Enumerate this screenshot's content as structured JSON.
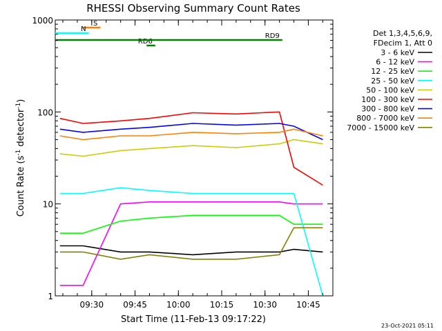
{
  "chart_data": {
    "type": "line",
    "title": "RHESSI Observing Summary Count Rates",
    "xlabel": "Start Time (11-Feb-13 09:17:22)",
    "ylabel": "Count Rate (s",
    "ylabel_sup": "-1",
    "ylabel_mid": " detector",
    "ylabel_end": ")",
    "yscale": "log",
    "ylim": [
      1,
      1000
    ],
    "xlim": [
      "09:17:22",
      "10:53:30"
    ],
    "x_ticks": [
      "09:30",
      "09:45",
      "10:00",
      "10:15",
      "10:30",
      "10:45"
    ],
    "y_ticks": [
      "1",
      "10",
      "100",
      "1000"
    ],
    "grid": false,
    "legend_position": "right",
    "legend_header": [
      "Det 1,3,4,5,6,9,",
      "FDecim 1, Att 0"
    ],
    "series": [
      {
        "name": "3 - 6 keV",
        "color": "#000000",
        "x": [
          "09:19",
          "09:27",
          "09:40",
          "09:50",
          "10:05",
          "10:20",
          "10:35",
          "10:40",
          "10:50"
        ],
        "y": [
          3.5,
          3.5,
          3.0,
          3.0,
          2.8,
          3.0,
          3.0,
          3.2,
          3.0
        ]
      },
      {
        "name": "6 - 12 keV",
        "color": "#ff00ff",
        "x": [
          "09:19",
          "09:27",
          "09:40",
          "09:50",
          "10:05",
          "10:20",
          "10:35",
          "10:40",
          "10:50"
        ],
        "y": [
          1.3,
          1.3,
          10.0,
          10.5,
          10.5,
          10.5,
          10.5,
          10.0,
          10.0
        ]
      },
      {
        "name": "12 - 25 keV",
        "color": "#00ff00",
        "x": [
          "09:19",
          "09:27",
          "09:40",
          "09:50",
          "10:05",
          "10:20",
          "10:35",
          "10:40",
          "10:50"
        ],
        "y": [
          4.8,
          4.8,
          6.5,
          7.0,
          7.5,
          7.5,
          7.5,
          6.0,
          6.0
        ]
      },
      {
        "name": "25 - 50 keV",
        "color": "#00ffff",
        "x": [
          "09:19",
          "09:27",
          "09:40",
          "09:50",
          "10:05",
          "10:20",
          "10:35",
          "10:40",
          "10:50"
        ],
        "y": [
          13,
          13,
          15,
          14,
          13,
          13,
          13,
          13,
          1.0
        ]
      },
      {
        "name": "50 - 100 keV",
        "color": "#cccc00",
        "x": [
          "09:19",
          "09:27",
          "09:40",
          "09:50",
          "10:05",
          "10:20",
          "10:35",
          "10:40",
          "10:50"
        ],
        "y": [
          35,
          33,
          38,
          40,
          43,
          41,
          45,
          50,
          45
        ]
      },
      {
        "name": "100 - 300 keV",
        "color": "#ff0000",
        "x": [
          "09:19",
          "09:27",
          "09:40",
          "09:50",
          "10:05",
          "10:20",
          "10:35",
          "10:40",
          "10:50"
        ],
        "y": [
          85,
          75,
          80,
          85,
          98,
          95,
          100,
          25,
          16
        ]
      },
      {
        "name": "300 - 800 keV",
        "color": "#0000ff",
        "x": [
          "09:19",
          "09:27",
          "09:40",
          "09:50",
          "10:05",
          "10:20",
          "10:35",
          "10:40",
          "10:50"
        ],
        "y": [
          65,
          60,
          65,
          68,
          75,
          72,
          75,
          70,
          50
        ]
      },
      {
        "name": "800 - 7000 keV",
        "color": "#ff8000",
        "x": [
          "09:19",
          "09:27",
          "09:40",
          "09:50",
          "10:05",
          "10:20",
          "10:35",
          "10:40",
          "10:50"
        ],
        "y": [
          55,
          50,
          55,
          55,
          60,
          58,
          60,
          65,
          55
        ]
      },
      {
        "name": "7000 - 15000 keV",
        "color": "#808000",
        "x": [
          "09:19",
          "09:27",
          "09:40",
          "09:50",
          "10:05",
          "10:20",
          "10:35",
          "10:40",
          "10:50"
        ],
        "y": [
          3.0,
          3.0,
          2.5,
          2.8,
          2.5,
          2.5,
          2.8,
          5.5,
          5.5
        ]
      }
    ],
    "annotations": [
      {
        "label": "S",
        "color": "#ff8000",
        "x_start": "09:27",
        "x_end": "09:33"
      },
      {
        "label": "N",
        "color": "#00ffff",
        "x_start": "09:17:22",
        "x_end": "09:29"
      },
      {
        "label": "RD6",
        "color": "#008000",
        "x_start": "09:49",
        "x_end": "09:52"
      },
      {
        "label": "RD9",
        "color": "#008000",
        "x_start": "09:17:22",
        "x_end": "10:36"
      }
    ]
  },
  "footer": {
    "timestamp": "23-Oct-2021 05:11"
  }
}
